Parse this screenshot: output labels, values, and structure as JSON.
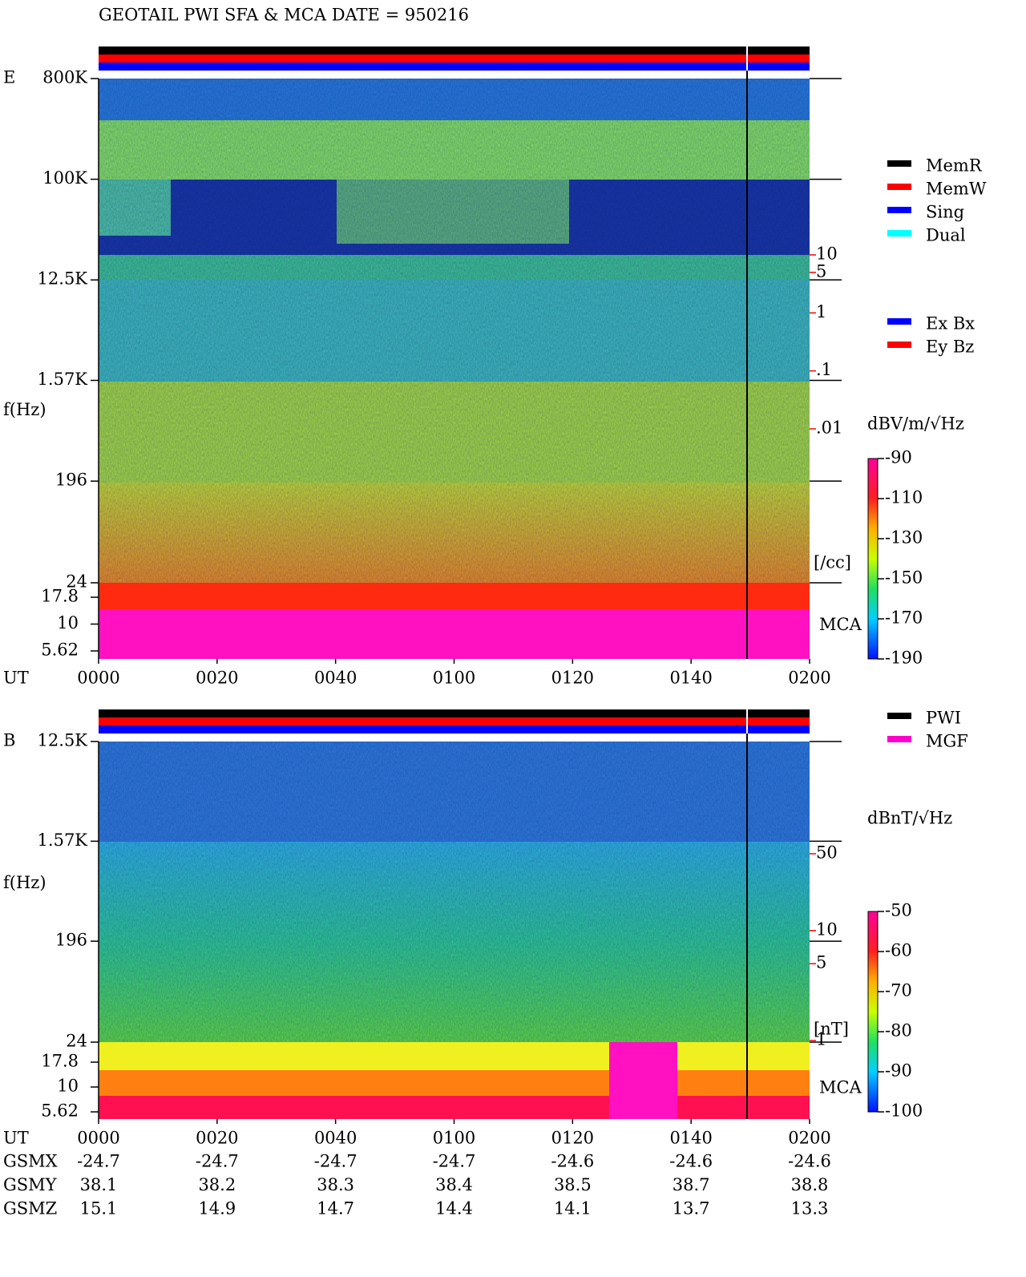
{
  "title": "GEOTAIL  PWI SFA & MCA   DATE = 950216",
  "chart_data": [
    {
      "type": "spectrogram",
      "panel_label": "E",
      "ylabel": "f(Hz)",
      "xlabel": "UT",
      "x": [
        "0000",
        "0020",
        "0040",
        "0100",
        "0120",
        "0140",
        "0200"
      ],
      "log_scale": true,
      "ylim": [
        24,
        800000
      ],
      "yticks": [
        {
          "value": 800000,
          "label": "800K"
        },
        {
          "value": 100000,
          "label": "100K"
        },
        {
          "value": 12500,
          "label": "12.5K"
        },
        {
          "value": 1570,
          "label": "1.57K"
        },
        196,
        24
      ],
      "mca_label": "MCA",
      "mca_ylim": [
        5.62,
        17.8
      ],
      "mca_ticks": [
        17.8,
        10,
        5.62
      ],
      "y2lim": [
        0.01,
        10
      ],
      "y2ticks": [
        10,
        5,
        1,
        {
          "value": 0.1,
          "label": ".1"
        },
        {
          "value": 0.01,
          "label": ".01"
        }
      ],
      "y2_unit": "[/cc]",
      "colorbar": {
        "label": "dBV/m/√Hz",
        "lim": [
          -190,
          -90
        ],
        "ticks": [
          -90,
          -110,
          -130,
          -150,
          -170,
          -190
        ]
      },
      "legend": [
        {
          "name": "MemR",
          "color": "#000000"
        },
        {
          "name": "MemW",
          "color": "#ff0000"
        },
        {
          "name": "Sing",
          "color": "#0000ff"
        },
        {
          "name": "Dual",
          "color": "#00ffff"
        }
      ],
      "legend2": [
        {
          "name": "Ex Bx",
          "color": "#0000ff"
        },
        {
          "name": "Ey Bz",
          "color": "#ff0000"
        }
      ]
    },
    {
      "type": "spectrogram",
      "panel_label": "B",
      "ylabel": "f(Hz)",
      "xlabel": "UT",
      "x": [
        "0000",
        "0020",
        "0040",
        "0100",
        "0120",
        "0140",
        "0200"
      ],
      "log_scale": true,
      "ylim": [
        24,
        12500
      ],
      "yticks": [
        {
          "value": 12500,
          "label": "12.5K"
        },
        {
          "value": 1570,
          "label": "1.57K"
        },
        196,
        24
      ],
      "mca_label": "MCA",
      "mca_ylim": [
        5.62,
        17.8
      ],
      "mca_ticks": [
        17.8,
        10,
        5.62
      ],
      "y2lim": [
        1,
        50
      ],
      "y2ticks": [
        50,
        10,
        5,
        1
      ],
      "y2_unit": "[nT]",
      "colorbar": {
        "label": "dBnT/√Hz",
        "lim": [
          -100,
          -50
        ],
        "ticks": [
          -50,
          -60,
          -70,
          -80,
          -90,
          -100
        ]
      },
      "legend": [
        {
          "name": "PWI",
          "color": "#000000"
        },
        {
          "name": "MGF",
          "color": "#ff00cc"
        }
      ]
    }
  ],
  "orbit": {
    "rows": [
      {
        "name": "GSMX",
        "values": [
          -24.7,
          -24.7,
          -24.7,
          -24.7,
          -24.6,
          -24.6,
          -24.6
        ]
      },
      {
        "name": "GSMY",
        "values": [
          38.1,
          38.2,
          38.3,
          38.4,
          38.5,
          38.7,
          38.8
        ]
      },
      {
        "name": "GSMZ",
        "values": [
          15.1,
          14.9,
          14.7,
          14.4,
          14.1,
          13.7,
          13.3
        ]
      }
    ]
  }
}
